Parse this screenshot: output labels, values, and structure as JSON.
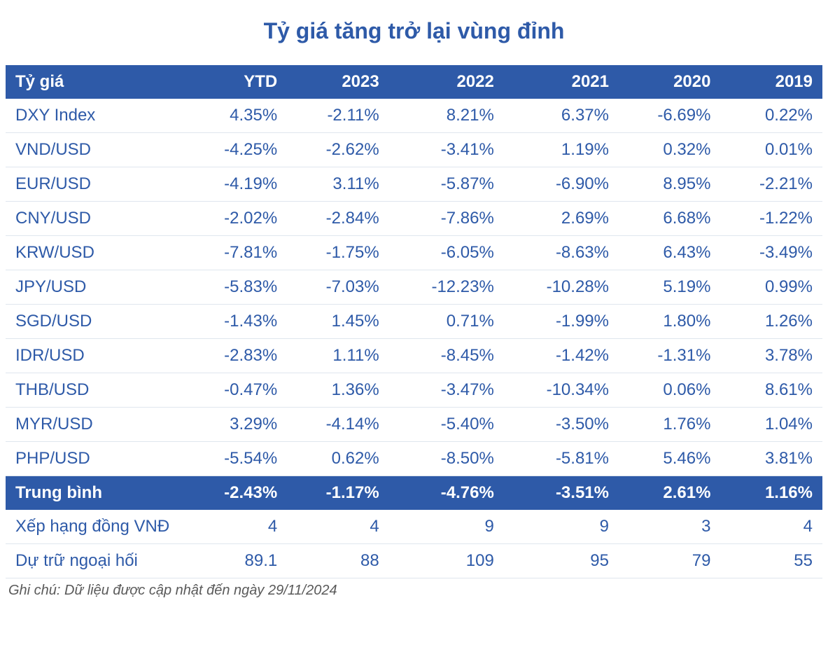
{
  "title": "Tỷ giá tăng trở lại vùng đỉnh",
  "table": {
    "type": "table",
    "header_bg": "#2e5aa8",
    "header_fg": "#ffffff",
    "cell_fg": "#2e5aa8",
    "row_border": "#dfe6ee",
    "title_color": "#2e5aa8",
    "title_fontsize": 32,
    "cell_fontsize": 24,
    "columns": [
      "Tỷ giá",
      "YTD",
      "2023",
      "2022",
      "2021",
      "2020",
      "2019"
    ],
    "column_align": [
      "left",
      "right",
      "right",
      "right",
      "right",
      "right",
      "right"
    ],
    "rows": [
      [
        "DXY Index",
        "4.35%",
        "-2.11%",
        "8.21%",
        "6.37%",
        "-6.69%",
        "0.22%"
      ],
      [
        "VND/USD",
        "-4.25%",
        "-2.62%",
        "-3.41%",
        "1.19%",
        "0.32%",
        "0.01%"
      ],
      [
        "EUR/USD",
        "-4.19%",
        "3.11%",
        "-5.87%",
        "-6.90%",
        "8.95%",
        "-2.21%"
      ],
      [
        "CNY/USD",
        "-2.02%",
        "-2.84%",
        "-7.86%",
        "2.69%",
        "6.68%",
        "-1.22%"
      ],
      [
        "KRW/USD",
        "-7.81%",
        "-1.75%",
        "-6.05%",
        "-8.63%",
        "6.43%",
        "-3.49%"
      ],
      [
        "JPY/USD",
        "-5.83%",
        "-7.03%",
        "-12.23%",
        "-10.28%",
        "5.19%",
        "0.99%"
      ],
      [
        "SGD/USD",
        "-1.43%",
        "1.45%",
        "0.71%",
        "-1.99%",
        "1.80%",
        "1.26%"
      ],
      [
        "IDR/USD",
        "-2.83%",
        "1.11%",
        "-8.45%",
        "-1.42%",
        "-1.31%",
        "3.78%"
      ],
      [
        "THB/USD",
        "-0.47%",
        "1.36%",
        "-3.47%",
        "-10.34%",
        "0.06%",
        "8.61%"
      ],
      [
        "MYR/USD",
        "3.29%",
        "-4.14%",
        "-5.40%",
        "-3.50%",
        "1.76%",
        "1.04%"
      ],
      [
        "PHP/USD",
        "-5.54%",
        "0.62%",
        "-8.50%",
        "-5.81%",
        "5.46%",
        "3.81%"
      ]
    ],
    "average_row": [
      "Trung bình",
      "-2.43%",
      "-1.17%",
      "-4.76%",
      "-3.51%",
      "2.61%",
      "1.16%"
    ],
    "extra_rows": [
      [
        "Xếp hạng đồng VNĐ",
        "4",
        "4",
        "9",
        "9",
        "3",
        "4"
      ],
      [
        "Dự trữ ngoại hối",
        "89.1",
        "88",
        "109",
        "95",
        "79",
        "55"
      ]
    ]
  },
  "footnote": "Ghi chú: Dữ liệu được cập nhật đến ngày 29/11/2024"
}
